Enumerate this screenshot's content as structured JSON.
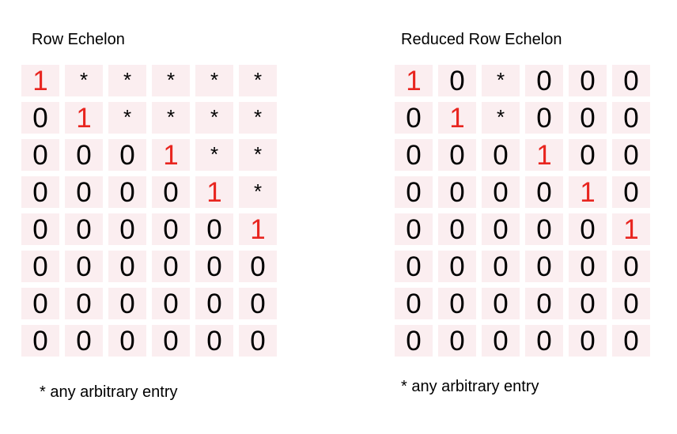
{
  "left_panel": {
    "title": "Row Echelon",
    "pivot_color": "#e8251f",
    "cell_bg": "#fbeef0",
    "rows": [
      [
        {
          "v": "1",
          "pivot": true
        },
        {
          "v": "*"
        },
        {
          "v": "*"
        },
        {
          "v": "*"
        },
        {
          "v": "*"
        },
        {
          "v": "*"
        }
      ],
      [
        {
          "v": "0"
        },
        {
          "v": "1",
          "pivot": true
        },
        {
          "v": "*"
        },
        {
          "v": "*"
        },
        {
          "v": "*"
        },
        {
          "v": "*"
        }
      ],
      [
        {
          "v": "0"
        },
        {
          "v": "0"
        },
        {
          "v": "0"
        },
        {
          "v": "1",
          "pivot": true
        },
        {
          "v": "*"
        },
        {
          "v": "*"
        }
      ],
      [
        {
          "v": "0"
        },
        {
          "v": "0"
        },
        {
          "v": "0"
        },
        {
          "v": "0"
        },
        {
          "v": "1",
          "pivot": true
        },
        {
          "v": "*"
        }
      ],
      [
        {
          "v": "0"
        },
        {
          "v": "0"
        },
        {
          "v": "0"
        },
        {
          "v": "0"
        },
        {
          "v": "0"
        },
        {
          "v": "1",
          "pivot": true
        }
      ],
      [
        {
          "v": "0"
        },
        {
          "v": "0"
        },
        {
          "v": "0"
        },
        {
          "v": "0"
        },
        {
          "v": "0"
        },
        {
          "v": "0"
        }
      ],
      [
        {
          "v": "0"
        },
        {
          "v": "0"
        },
        {
          "v": "0"
        },
        {
          "v": "0"
        },
        {
          "v": "0"
        },
        {
          "v": "0"
        }
      ],
      [
        {
          "v": "0"
        },
        {
          "v": "0"
        },
        {
          "v": "0"
        },
        {
          "v": "0"
        },
        {
          "v": "0"
        },
        {
          "v": "0"
        }
      ]
    ],
    "footnote": "* any arbitrary entry"
  },
  "right_panel": {
    "title": "Reduced Row Echelon",
    "pivot_color": "#e8251f",
    "cell_bg": "#fbeef0",
    "rows": [
      [
        {
          "v": "1",
          "pivot": true
        },
        {
          "v": "0"
        },
        {
          "v": "*"
        },
        {
          "v": "0"
        },
        {
          "v": "0"
        },
        {
          "v": "0"
        }
      ],
      [
        {
          "v": "0"
        },
        {
          "v": "1",
          "pivot": true
        },
        {
          "v": "*"
        },
        {
          "v": "0"
        },
        {
          "v": "0"
        },
        {
          "v": "0"
        }
      ],
      [
        {
          "v": "0"
        },
        {
          "v": "0"
        },
        {
          "v": "0"
        },
        {
          "v": "1",
          "pivot": true
        },
        {
          "v": "0"
        },
        {
          "v": "0"
        }
      ],
      [
        {
          "v": "0"
        },
        {
          "v": "0"
        },
        {
          "v": "0"
        },
        {
          "v": "0"
        },
        {
          "v": "1",
          "pivot": true
        },
        {
          "v": "0"
        }
      ],
      [
        {
          "v": "0"
        },
        {
          "v": "0"
        },
        {
          "v": "0"
        },
        {
          "v": "0"
        },
        {
          "v": "0"
        },
        {
          "v": "1",
          "pivot": true
        }
      ],
      [
        {
          "v": "0"
        },
        {
          "v": "0"
        },
        {
          "v": "0"
        },
        {
          "v": "0"
        },
        {
          "v": "0"
        },
        {
          "v": "0"
        }
      ],
      [
        {
          "v": "0"
        },
        {
          "v": "0"
        },
        {
          "v": "0"
        },
        {
          "v": "0"
        },
        {
          "v": "0"
        },
        {
          "v": "0"
        }
      ],
      [
        {
          "v": "0"
        },
        {
          "v": "0"
        },
        {
          "v": "0"
        },
        {
          "v": "0"
        },
        {
          "v": "0"
        },
        {
          "v": "0"
        }
      ]
    ],
    "footnote": "* any arbitrary entry"
  }
}
